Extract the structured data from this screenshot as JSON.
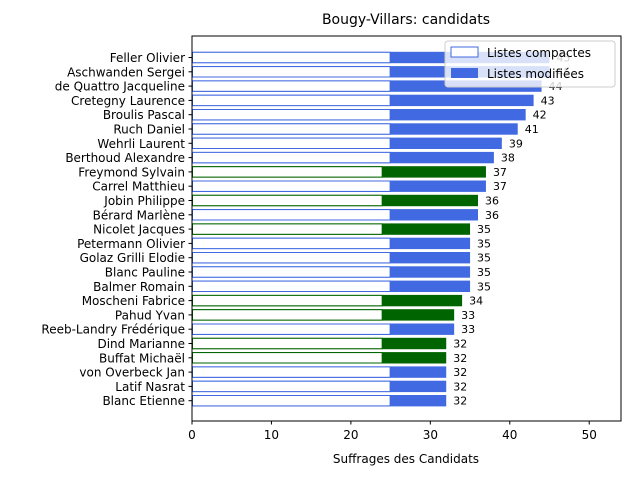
{
  "chart_data": {
    "type": "bar",
    "orientation": "horizontal",
    "title": "Bougy-Villars: candidats",
    "xlabel": "Suffrages des Candidats",
    "ylabel": "",
    "xlim": [
      0,
      54
    ],
    "xticks": [
      0,
      10,
      20,
      30,
      40,
      50
    ],
    "grid": false,
    "legend_position": "top-right",
    "series": [
      {
        "name": "Listes compactes",
        "style": "outline",
        "color": "#4169e1"
      },
      {
        "name": "Listes modifiées",
        "style": "filled",
        "color": "#4169e1"
      }
    ],
    "highlight_color": "#006400",
    "categories": [
      {
        "name": "Feller Olivier",
        "compact": 25,
        "total": 45,
        "highlight": false
      },
      {
        "name": "Aschwanden Sergei",
        "compact": 25,
        "total": 45,
        "highlight": false
      },
      {
        "name": "de Quattro Jacqueline",
        "compact": 25,
        "total": 44,
        "highlight": false
      },
      {
        "name": "Cretegny Laurence",
        "compact": 25,
        "total": 43,
        "highlight": false
      },
      {
        "name": "Broulis Pascal",
        "compact": 25,
        "total": 42,
        "highlight": false
      },
      {
        "name": "Ruch Daniel",
        "compact": 25,
        "total": 41,
        "highlight": false
      },
      {
        "name": "Wehrli Laurent",
        "compact": 25,
        "total": 39,
        "highlight": false
      },
      {
        "name": "Berthoud Alexandre",
        "compact": 25,
        "total": 38,
        "highlight": false
      },
      {
        "name": "Freymond Sylvain",
        "compact": 24,
        "total": 37,
        "highlight": true
      },
      {
        "name": "Carrel Matthieu",
        "compact": 25,
        "total": 37,
        "highlight": false
      },
      {
        "name": "Jobin Philippe",
        "compact": 24,
        "total": 36,
        "highlight": true
      },
      {
        "name": "Bérard Marlène",
        "compact": 25,
        "total": 36,
        "highlight": false
      },
      {
        "name": "Nicolet Jacques",
        "compact": 24,
        "total": 35,
        "highlight": true
      },
      {
        "name": "Petermann Olivier",
        "compact": 25,
        "total": 35,
        "highlight": false
      },
      {
        "name": "Golaz Grilli Elodie",
        "compact": 25,
        "total": 35,
        "highlight": false
      },
      {
        "name": "Blanc Pauline",
        "compact": 25,
        "total": 35,
        "highlight": false
      },
      {
        "name": "Balmer Romain",
        "compact": 25,
        "total": 35,
        "highlight": false
      },
      {
        "name": "Moscheni Fabrice",
        "compact": 24,
        "total": 34,
        "highlight": true
      },
      {
        "name": "Pahud Yvan",
        "compact": 24,
        "total": 33,
        "highlight": true
      },
      {
        "name": "Reeb-Landry Frédérique",
        "compact": 25,
        "total": 33,
        "highlight": false
      },
      {
        "name": "Dind Marianne",
        "compact": 24,
        "total": 32,
        "highlight": true
      },
      {
        "name": "Buffat Michaël",
        "compact": 24,
        "total": 32,
        "highlight": true
      },
      {
        "name": "von Overbeck Jan",
        "compact": 25,
        "total": 32,
        "highlight": false
      },
      {
        "name": "Latif Nasrat",
        "compact": 25,
        "total": 32,
        "highlight": false
      },
      {
        "name": "Blanc Etienne",
        "compact": 25,
        "total": 32,
        "highlight": false
      }
    ]
  }
}
